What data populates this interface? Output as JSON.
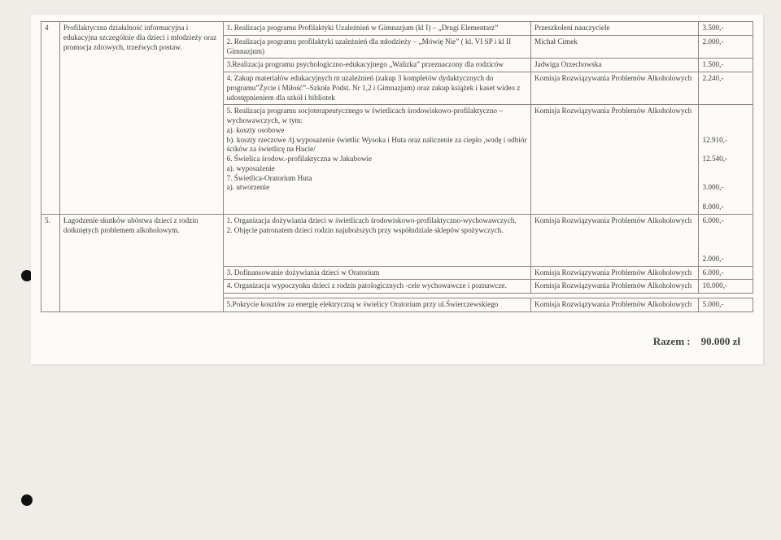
{
  "rows": [
    {
      "no": "4",
      "task": "Profilaktyczna działalność informacyjna i edukacyjna szczególnie dla dzieci i młodzieży oraz promocja zdrowych, trzeźwych postaw.",
      "items": [
        {
          "impl": "1. Realizacja programu Profilaktyki Uzależnień w Gimnazjum (kl I) – „Drugi Elementarz”",
          "resp": "Przeszkoleni nauczyciele",
          "amt": "3.500,-"
        },
        {
          "impl": "2. Realizacja programu profilaktyki uzależnień dla młodzieży – „Mówię Nie” ( kl. VI SP i kl II Gimnazjum)",
          "resp": "Michał Cimek",
          "amt": "2.000,-"
        },
        {
          "impl": "3.Realizacja programu psychologiczno-edukacyjnego „Walizka” przeznaczony dla rodziców",
          "resp": "Jadwiga Orzechowska",
          "amt": "1.500,-"
        },
        {
          "impl": "4. Zakup materiałów edukacyjnych nt uzależnień (zakup 3 kompletów dydaktycznych do programu”Życie i Miłość”–Szkoła Podst. Nr 1,2 i Gimnazjum) oraz zakup książek i kaset wideo z udostępnieniem dla szkół i bibliotek",
          "resp": "Komisja Rozwiązywania Problemów Alkoholowych",
          "amt": "2.240,-"
        },
        {
          "impl": "5. Realizacja programu socjoterapeutycznego w świetlicach środowiskowo-profilaktyczno – wychowawczych, w tym:\na).  koszty osobowe\nb).  koszty rzeczowe /tj.wyposażenie świetlic Wysoka i Huta oraz naliczenie za ciepło ,wodę i odbiór ścików za świetlicę  na Hucie/\n6. Świelica środow.-profilaktyczna w Jakubowie\na).   wyposażenie\n7. Świetlica-Oratorium Huta\na).   utworzenie",
          "resp": "Komisja Rozwiązywania Problemów Alkoholowych",
          "amt": "\n\n\n12.910,-\n\n12.540,-\n\n\n3.000,-\n\n8.000,-"
        }
      ]
    },
    {
      "no": "5.",
      "task": "Łagodzenie skutków ubóstwa dzieci z rodzin dotkniętych problemem alkoholowym.",
      "items": [
        {
          "impl": "1.   Organizacja dożywiania dzieci w świetlicach środowiskowo-profilaktyczno-wychowawczych.\n2.   Objęcie patronatem dzieci  rodzin najuboższych przy współudziale sklepów spożywczych.",
          "resp": "Komisja Rozwiązywania Problemów Alkoholowych",
          "amt": "6.000,-\n\n\n\n2.000,-"
        },
        {
          "impl": "3. Dofinansowanie dożywiania dzieci w Oratorium",
          "resp": "Komisja Rozwiązywania Problemów Alkoholowych",
          "amt": "6.000,-"
        },
        {
          "impl": "4. Organizacja wypoczynku dzieci z rodzin patologicznych -cele wychowawcze i poznawcze.",
          "resp": "Komisja Rozwiązywania Problemów Alkoholowych",
          "amt": "10.000,-"
        },
        {
          "impl": "5.Pokrycie kosztów za energię elektryczną w świelicy Oratorium przy ul.Świerczewskiego",
          "resp": "Komisja Rozwiązywania Problemów Alkoholowych",
          "amt": "5.000,-",
          "gap": true
        }
      ]
    }
  ],
  "total_label": "Razem :",
  "total_value": "90.000 zł"
}
